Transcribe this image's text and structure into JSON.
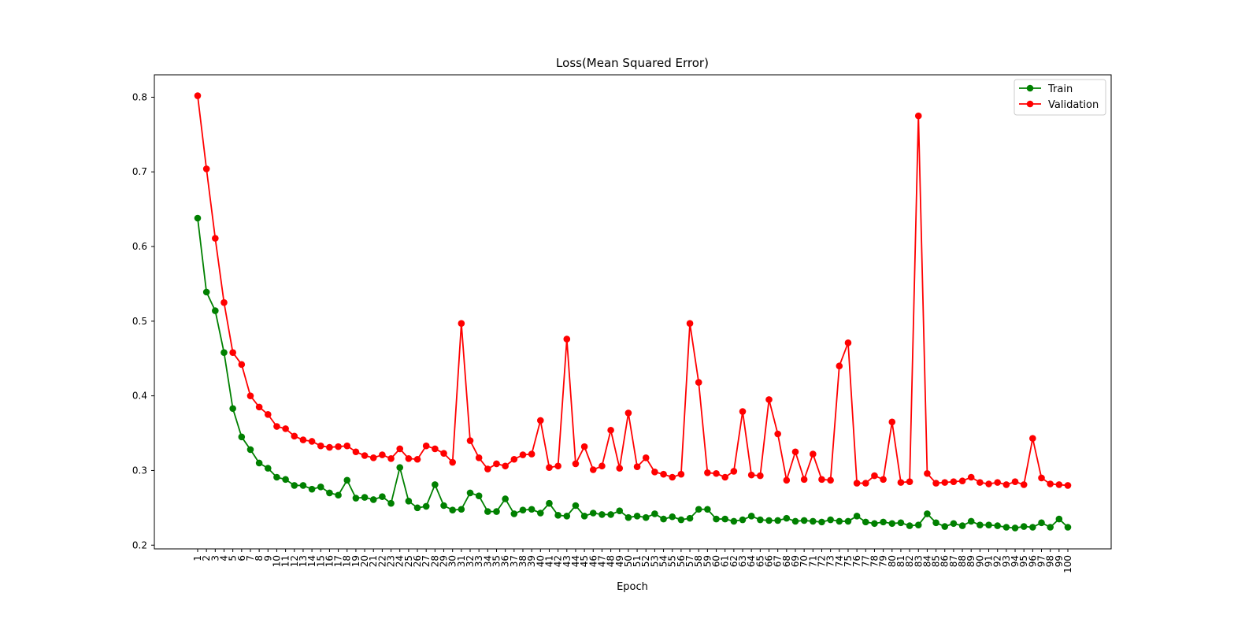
{
  "chart_data": {
    "type": "line",
    "title": "Loss(Mean Squared Error)",
    "xlabel": "Epoch",
    "ylabel": "",
    "ylim": [
      0.195,
      0.83
    ],
    "yticks": [
      "0.2",
      "0.3",
      "0.4",
      "0.5",
      "0.6",
      "0.7",
      "0.8"
    ],
    "legend_position": "top-right",
    "grid": false,
    "x": [
      1,
      2,
      3,
      4,
      5,
      6,
      7,
      8,
      9,
      10,
      11,
      12,
      13,
      14,
      15,
      16,
      17,
      18,
      19,
      20,
      21,
      22,
      23,
      24,
      25,
      26,
      27,
      28,
      29,
      30,
      31,
      32,
      33,
      34,
      35,
      36,
      37,
      38,
      39,
      40,
      41,
      42,
      43,
      44,
      45,
      46,
      47,
      48,
      49,
      50,
      51,
      52,
      53,
      54,
      55,
      56,
      57,
      58,
      59,
      60,
      61,
      62,
      63,
      64,
      65,
      66,
      67,
      68,
      69,
      70,
      71,
      72,
      73,
      74,
      75,
      76,
      77,
      78,
      79,
      80,
      81,
      82,
      83,
      84,
      85,
      86,
      87,
      88,
      89,
      90,
      91,
      92,
      93,
      94,
      95,
      96,
      97,
      98,
      99,
      100
    ],
    "series": [
      {
        "name": "Train",
        "color": "#008000",
        "values": [
          0.638,
          0.539,
          0.514,
          0.458,
          0.383,
          0.345,
          0.328,
          0.31,
          0.303,
          0.291,
          0.288,
          0.28,
          0.28,
          0.275,
          0.278,
          0.27,
          0.267,
          0.287,
          0.263,
          0.264,
          0.261,
          0.265,
          0.256,
          0.304,
          0.259,
          0.25,
          0.252,
          0.281,
          0.253,
          0.247,
          0.248,
          0.27,
          0.266,
          0.245,
          0.245,
          0.262,
          0.242,
          0.247,
          0.248,
          0.243,
          0.256,
          0.24,
          0.239,
          0.253,
          0.239,
          0.243,
          0.241,
          0.241,
          0.246,
          0.237,
          0.239,
          0.237,
          0.242,
          0.235,
          0.238,
          0.234,
          0.236,
          0.248,
          0.248,
          0.235,
          0.235,
          0.232,
          0.234,
          0.239,
          0.234,
          0.233,
          0.233,
          0.236,
          0.232,
          0.233,
          0.232,
          0.231,
          0.234,
          0.232,
          0.232,
          0.239,
          0.231,
          0.229,
          0.231,
          0.229,
          0.23,
          0.226,
          0.227,
          0.242,
          0.23,
          0.225,
          0.229,
          0.226,
          0.232,
          0.227,
          0.227,
          0.226,
          0.224,
          0.223,
          0.225,
          0.224,
          0.23,
          0.224,
          0.235,
          0.224
        ]
      },
      {
        "name": "Validation",
        "color": "#ff0000",
        "values": [
          0.802,
          0.704,
          0.611,
          0.525,
          0.458,
          0.442,
          0.4,
          0.385,
          0.375,
          0.359,
          0.356,
          0.346,
          0.341,
          0.339,
          0.333,
          0.331,
          0.332,
          0.333,
          0.325,
          0.32,
          0.317,
          0.321,
          0.316,
          0.329,
          0.316,
          0.315,
          0.333,
          0.329,
          0.323,
          0.311,
          0.497,
          0.34,
          0.317,
          0.302,
          0.309,
          0.306,
          0.315,
          0.321,
          0.322,
          0.367,
          0.304,
          0.306,
          0.476,
          0.309,
          0.332,
          0.301,
          0.306,
          0.354,
          0.303,
          0.377,
          0.305,
          0.317,
          0.298,
          0.295,
          0.291,
          0.295,
          0.497,
          0.418,
          0.297,
          0.296,
          0.291,
          0.299,
          0.379,
          0.294,
          0.293,
          0.395,
          0.349,
          0.287,
          0.325,
          0.288,
          0.322,
          0.288,
          0.287,
          0.44,
          0.471,
          0.283,
          0.283,
          0.293,
          0.288,
          0.365,
          0.284,
          0.285,
          0.775,
          0.296,
          0.283,
          0.284,
          0.285,
          0.286,
          0.291,
          0.284,
          0.282,
          0.284,
          0.281,
          0.285,
          0.281,
          0.343,
          0.29,
          0.282,
          0.281,
          0.28
        ]
      }
    ]
  }
}
